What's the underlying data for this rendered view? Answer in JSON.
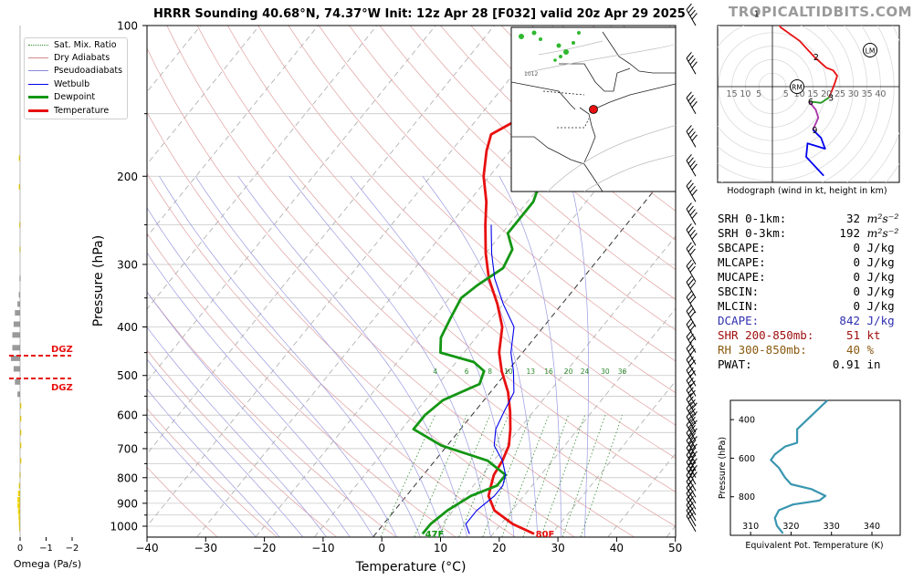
{
  "title": "HRRR Sounding 40.68°N, 74.37°W Init: 12z Apr 28 [F032] valid 20z Apr 29 2025",
  "brand": "TROPICALTIDBITS.COM",
  "legend": [
    {
      "label": "Sat. Mix. Ratio",
      "color": "#2e8b2e",
      "style": "dotted"
    },
    {
      "label": "Dry Adiabats",
      "color": "#d08a8a",
      "style": "solid"
    },
    {
      "label": "Pseudoadiabats",
      "color": "#8a8ad8",
      "style": "solid"
    },
    {
      "label": "Wetbulb",
      "color": "#0000ee",
      "style": "solid"
    },
    {
      "label": "Dewpoint",
      "color": "#149614",
      "style": "thick"
    },
    {
      "label": "Temperature",
      "color": "#e81010",
      "style": "thick"
    }
  ],
  "skewt": {
    "xlabel": "Temperature (°C)",
    "ylabel": "Pressure (hPa)",
    "xticks": [
      "−40",
      "−30",
      "−20",
      "−10",
      "0",
      "10",
      "20",
      "30",
      "40",
      "50"
    ],
    "yticks": [
      "100",
      "200",
      "300",
      "400",
      "500",
      "600",
      "700",
      "800",
      "900",
      "1000"
    ],
    "mixratio_labels": [
      "4",
      "6",
      "8",
      "10",
      "13",
      "16",
      "20",
      "24",
      "30",
      "36"
    ],
    "surface_dewpoint_label": "47F",
    "surface_temp_label": "80F"
  },
  "omega": {
    "xlabel": "Omega (Pa/s)",
    "xticks": [
      "0",
      "−1",
      "−2"
    ],
    "dgz_label_top": "DGZ",
    "dgz_label_bottom": "DGZ"
  },
  "map": {
    "contour_label": "1012"
  },
  "hodograph": {
    "caption": "Hodograph (wind in kt, height in km)",
    "ring_labels_left": [
      "15",
      "10",
      "5"
    ],
    "ring_labels_right": [
      "5",
      "10",
      "15",
      "20",
      "25",
      "30",
      "35",
      "40"
    ],
    "height_labels": [
      "1",
      "2",
      "3",
      "6",
      "9"
    ],
    "rm_label": "RM",
    "lm_label": "LM"
  },
  "stats": [
    {
      "label": "SRH 0-1km:",
      "value": "32",
      "unit": "m²s⁻²",
      "color": "#000000"
    },
    {
      "label": "SRH 0-3km:",
      "value": "192",
      "unit": "m²s⁻²",
      "color": "#000000"
    },
    {
      "label": "SBCAPE:",
      "value": "0",
      "unit": "J/kg",
      "color": "#000000"
    },
    {
      "label": "MLCAPE:",
      "value": "0",
      "unit": "J/kg",
      "color": "#000000"
    },
    {
      "label": "MUCAPE:",
      "value": "0",
      "unit": "J/kg",
      "color": "#000000"
    },
    {
      "label": "SBCIN:",
      "value": "0",
      "unit": "J/kg",
      "color": "#000000"
    },
    {
      "label": "MLCIN:",
      "value": "0",
      "unit": "J/kg",
      "color": "#000000"
    },
    {
      "label": "DCAPE:",
      "value": "842",
      "unit": "J/kg",
      "color": "#3030b0"
    },
    {
      "label": "SHR 200-850mb:",
      "value": "51",
      "unit": "kt",
      "color": "#a01010"
    },
    {
      "label": "RH 300-850mb:",
      "value": "40",
      "unit": "%",
      "color": "#8a5a10"
    },
    {
      "label": "PWAT:",
      "value": "0.91",
      "unit": "in",
      "color": "#000000"
    }
  ],
  "theta_e": {
    "xlabel": "Equivalent Pot. Temperature (K)",
    "ylabel": "Pressure (hPa)",
    "xticks": [
      "310",
      "320",
      "330",
      "340"
    ],
    "yticks": [
      "400",
      "600",
      "800"
    ]
  },
  "chart_data": [
    {
      "type": "line",
      "title": "HRRR Sounding 40.68°N, 74.37°W Init: 12z Apr 28 [F032] valid 20z Apr 29 2025",
      "xlabel": "Temperature (°C)",
      "ylabel": "Pressure (hPa)",
      "xlim": [
        -40,
        50
      ],
      "ylim": [
        1050,
        100
      ],
      "yscale": "log",
      "series": [
        {
          "name": "Temperature",
          "color": "#e81010",
          "points": [
            [
              27,
              1036
            ],
            [
              22,
              990
            ],
            [
              17,
              930
            ],
            [
              14,
              870
            ],
            [
              13,
              830
            ],
            [
              12,
              790
            ],
            [
              11.5,
              740
            ],
            [
              10.5,
              690
            ],
            [
              8.5,
              640
            ],
            [
              6,
              590
            ],
            [
              3,
              540
            ],
            [
              -1,
              490
            ],
            [
              -4,
              450
            ],
            [
              -7,
              400
            ],
            [
              -11,
              360
            ],
            [
              -16,
              320
            ],
            [
              -20,
              285
            ],
            [
              -24,
              250
            ],
            [
              -27,
              225
            ],
            [
              -31,
              200
            ],
            [
              -34,
              178
            ],
            [
              -35.5,
              165
            ],
            [
              -32,
              150
            ],
            [
              -25,
              135
            ],
            [
              -18,
              121
            ],
            [
              -6,
              108
            ],
            [
              0,
              100
            ]
          ]
        },
        {
          "name": "Dewpoint",
          "color": "#149614",
          "points": [
            [
              8,
              1036
            ],
            [
              8,
              990
            ],
            [
              9,
              930
            ],
            [
              11,
              870
            ],
            [
              14,
              830
            ],
            [
              14,
              790
            ],
            [
              9,
              740
            ],
            [
              -1,
              690
            ],
            [
              -8,
              640
            ],
            [
              -8,
              600
            ],
            [
              -7,
              560
            ],
            [
              -3,
              520
            ],
            [
              -4,
              490
            ],
            [
              -7,
              470
            ],
            [
              -14,
              450
            ],
            [
              -16,
              420
            ],
            [
              -17,
              385
            ],
            [
              -18,
              350
            ],
            [
              -17,
              330
            ],
            [
              -15,
              305
            ],
            [
              -16,
              280
            ],
            [
              -19,
              260
            ],
            [
              -19,
              240
            ],
            [
              -19,
              225
            ],
            [
              -21,
              200
            ],
            [
              -23,
              180
            ],
            [
              -24,
              160
            ],
            [
              -22,
              140
            ],
            [
              -17,
              120
            ],
            [
              -16,
              108
            ],
            [
              -16,
              100
            ]
          ]
        },
        {
          "name": "Wetbulb",
          "color": "#0000ee",
          "points": [
            [
              16,
              1036
            ],
            [
              14,
              990
            ],
            [
              14,
              930
            ],
            [
              15,
              870
            ],
            [
              15,
              830
            ],
            [
              14,
              790
            ],
            [
              11.5,
              740
            ],
            [
              8,
              690
            ],
            [
              6,
              640
            ],
            [
              5,
              590
            ],
            [
              4,
              540
            ],
            [
              1,
              490
            ],
            [
              -2,
              450
            ],
            [
              -5,
              400
            ],
            [
              -10,
              360
            ],
            [
              -15,
              320
            ],
            [
              -19,
              285
            ],
            [
              -23,
              250
            ]
          ]
        }
      ],
      "annotations": [
        {
          "text": "47F",
          "x": 8,
          "y": 1036
        },
        {
          "text": "80F",
          "x": 27,
          "y": 1036
        }
      ]
    },
    {
      "type": "line",
      "title": "Hodograph (wind in kt, height in km)",
      "series": [
        {
          "name": "0-1 km",
          "color": "#e81010",
          "points": [
            [
              -10,
              23
            ],
            [
              -6.5,
              27
            ],
            [
              0,
              28
            ],
            [
              3,
              22
            ],
            [
              10,
              17
            ],
            [
              15.5,
              11
            ]
          ]
        },
        {
          "name": "1-3 km",
          "color": "#e81010",
          "points": [
            [
              15.5,
              11
            ],
            [
              20,
              7
            ],
            [
              22.5,
              6
            ],
            [
              24,
              4
            ],
            [
              23,
              1
            ],
            [
              21,
              -4
            ]
          ]
        },
        {
          "name": "3-6 km",
          "color": "#229922",
          "points": [
            [
              21,
              -4
            ],
            [
              18,
              -6
            ],
            [
              13.5,
              -5.5
            ]
          ]
        },
        {
          "name": "6-9 km",
          "color": "#aa33aa",
          "points": [
            [
              13.5,
              -5.5
            ],
            [
              16,
              -8.5
            ],
            [
              17,
              -11.5
            ],
            [
              15,
              -16
            ]
          ]
        },
        {
          "name": "9+ km",
          "color": "#0000ee",
          "points": [
            [
              15,
              -16
            ],
            [
              18,
              -19
            ],
            [
              19.5,
              -23
            ],
            [
              13,
              -21
            ],
            [
              12.5,
              -26
            ],
            [
              19,
              -33
            ]
          ]
        }
      ]
    },
    {
      "type": "line",
      "title": "",
      "xlabel": "Equivalent Pot. Temperature (K)",
      "ylabel": "Pressure (hPa)",
      "xlim": [
        305,
        347
      ],
      "ylim": [
        1000,
        300
      ],
      "series": [
        {
          "name": "",
          "color": "#3a96b0",
          "points": [
            [
              329,
              300
            ],
            [
              326,
              360
            ],
            [
              323.5,
              410
            ],
            [
              321.5,
              450
            ],
            [
              321.5,
              520
            ],
            [
              318.5,
              540
            ],
            [
              316,
              580
            ],
            [
              315,
              610
            ],
            [
              317,
              650
            ],
            [
              318.5,
              700
            ],
            [
              320,
              735
            ],
            [
              325,
              760
            ],
            [
              328.5,
              795
            ],
            [
              327,
              820
            ],
            [
              320.5,
              840
            ],
            [
              317,
              870
            ],
            [
              316,
              910
            ],
            [
              316.5,
              950
            ],
            [
              318,
              990
            ]
          ]
        }
      ]
    },
    {
      "type": "bar",
      "title": "",
      "xlabel": "Omega (Pa/s)",
      "ylabel": "Pressure (hPa)",
      "xlim": [
        0.2,
        -2.3
      ],
      "dgz_hpa": [
        460,
        510
      ],
      "bars": [
        {
          "p": 184,
          "omega": -0.05,
          "color": "#f5d800"
        },
        {
          "p": 210,
          "omega": -0.05,
          "color": "#f5d800"
        },
        {
          "p": 250,
          "omega": -0.03,
          "color": "#f5d800"
        },
        {
          "p": 280,
          "omega": -0.02,
          "color": "#f5d800"
        },
        {
          "p": 320,
          "omega": -0.02,
          "color": "#9a9a9a"
        },
        {
          "p": 345,
          "omega": -0.05,
          "color": "#9a9a9a"
        },
        {
          "p": 360,
          "omega": -0.1,
          "color": "#9a9a9a"
        },
        {
          "p": 375,
          "omega": -0.2,
          "color": "#9a9a9a"
        },
        {
          "p": 395,
          "omega": -0.25,
          "color": "#9a9a9a"
        },
        {
          "p": 415,
          "omega": -0.3,
          "color": "#9a9a9a"
        },
        {
          "p": 440,
          "omega": -0.3,
          "color": "#9a9a9a"
        },
        {
          "p": 462,
          "omega": -0.35,
          "color": "#9a9a9a"
        },
        {
          "p": 485,
          "omega": -0.25,
          "color": "#9a9a9a"
        },
        {
          "p": 515,
          "omega": -0.2,
          "color": "#9a9a9a"
        },
        {
          "p": 545,
          "omega": -0.1,
          "color": "#9a9a9a"
        },
        {
          "p": 575,
          "omega": 0.05,
          "color": "#f5d800"
        },
        {
          "p": 610,
          "omega": 0.05,
          "color": "#f5d800"
        },
        {
          "p": 650,
          "omega": 0.05,
          "color": "#f5d800"
        },
        {
          "p": 690,
          "omega": 0.05,
          "color": "#f5d800"
        },
        {
          "p": 740,
          "omega": 0.05,
          "color": "#f5d800"
        },
        {
          "p": 790,
          "omega": -0.02,
          "color": "#f5d800"
        },
        {
          "p": 830,
          "omega": -0.05,
          "color": "#f5d800"
        },
        {
          "p": 860,
          "omega": -0.08,
          "color": "#f5d800"
        },
        {
          "p": 885,
          "omega": -0.1,
          "color": "#f5d800"
        },
        {
          "p": 910,
          "omega": -0.1,
          "color": "#f5d800"
        },
        {
          "p": 935,
          "omega": -0.08,
          "color": "#f5d800"
        },
        {
          "p": 960,
          "omega": -0.06,
          "color": "#f5d800"
        },
        {
          "p": 985,
          "omega": -0.05,
          "color": "#f5d800"
        },
        {
          "p": 1010,
          "omega": -0.04,
          "color": "#f5d800"
        }
      ]
    }
  ]
}
